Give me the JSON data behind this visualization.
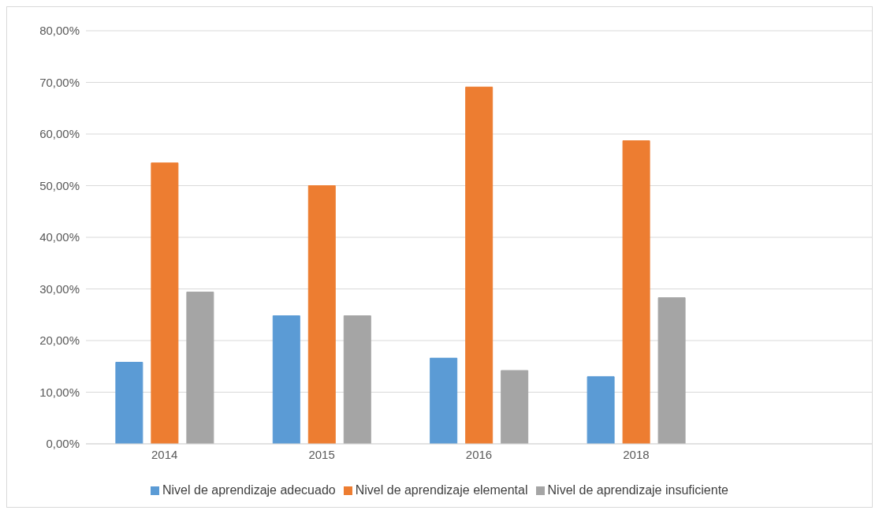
{
  "chart_data": {
    "type": "bar",
    "categories": [
      "2014",
      "2015",
      "2016",
      "2018",
      null
    ],
    "series": [
      {
        "name": "Nivel de aprendizaje adecuado",
        "color": "#5b9bd5",
        "values": [
          15.8,
          24.8,
          16.6,
          13.0,
          null
        ]
      },
      {
        "name": "Nivel de aprendizaje elemental",
        "color": "#ed7d31",
        "values": [
          54.4,
          50.0,
          69.1,
          58.7,
          null
        ]
      },
      {
        "name": "Nivel de aprendizaje insuficiente",
        "color": "#a5a5a5",
        "values": [
          29.4,
          24.8,
          14.2,
          28.3,
          null
        ]
      }
    ],
    "ylim": [
      0,
      80
    ],
    "yticks": [
      {
        "value": 0,
        "label": "0,00%"
      },
      {
        "value": 10,
        "label": "10,00%"
      },
      {
        "value": 20,
        "label": "20,00%"
      },
      {
        "value": 30,
        "label": "30,00%"
      },
      {
        "value": 40,
        "label": "40,00%"
      },
      {
        "value": 50,
        "label": "50,00%"
      },
      {
        "value": 60,
        "label": "60,00%"
      },
      {
        "value": 70,
        "label": "70,00%"
      },
      {
        "value": 80,
        "label": "80,00%"
      }
    ],
    "grid": "y",
    "legend": "bottom"
  }
}
